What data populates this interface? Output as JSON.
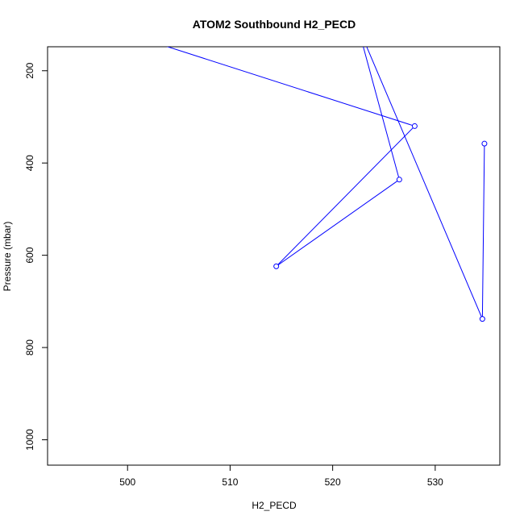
{
  "chart_data": {
    "type": "line",
    "title": "ATOM2 Southbound H2_PECD",
    "xlabel": "H2_PECD",
    "ylabel": "Pressure (mbar)",
    "xlim": [
      492.2,
      536.3
    ],
    "ylim": [
      1055,
      148
    ],
    "y_reversed": true,
    "x_ticks": [
      500,
      510,
      520,
      530
    ],
    "y_ticks": [
      200,
      400,
      600,
      800,
      1000
    ],
    "line_color": "#0000ff",
    "series": [
      {
        "marker": "open-circle",
        "points": [
          {
            "x": 534.8,
            "y": 358
          },
          {
            "x": 534.6,
            "y": 738
          },
          {
            "x": 522.4,
            "y": 100
          },
          {
            "x": 526.5,
            "y": 436
          },
          {
            "x": 514.5,
            "y": 624
          },
          {
            "x": 528.0,
            "y": 320
          },
          {
            "x": 500.0,
            "y": 120
          }
        ]
      }
    ]
  }
}
